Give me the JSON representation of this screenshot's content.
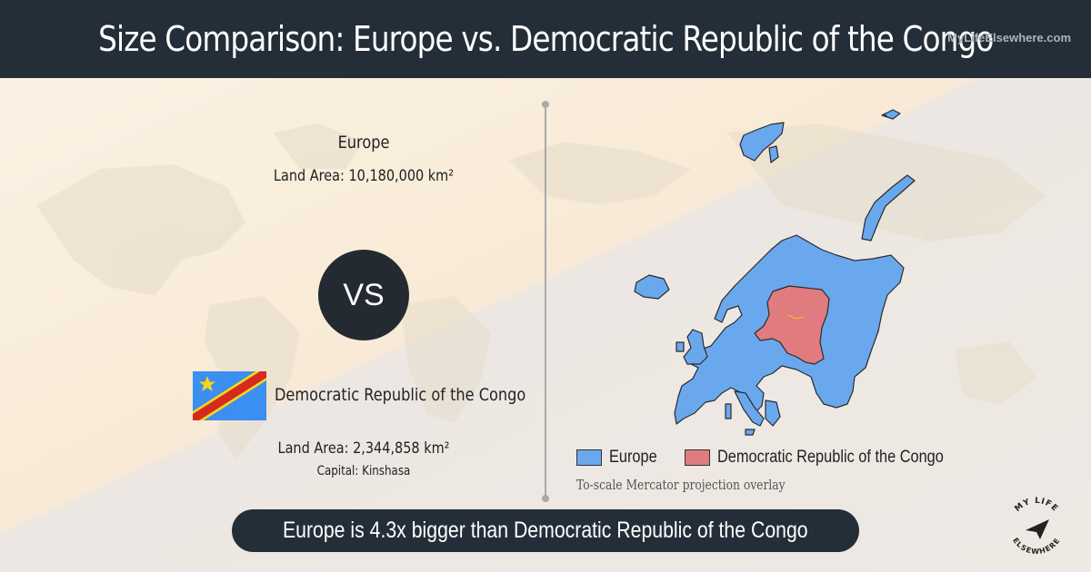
{
  "header": {
    "title": "Size Comparison: Europe vs. Democratic Republic of the Congo",
    "watermark": "MyLifeElsewhere.com"
  },
  "region": {
    "name": "Europe",
    "land_area": "Land Area: 10,180,000 km²"
  },
  "vs_label": "VS",
  "country": {
    "name": "Democratic Republic of the Congo",
    "land_area": "Land Area: 2,344,858 km²",
    "capital": "Capital: Kinshasa",
    "flag_colors": {
      "field": "#3a8ff0",
      "stripe": "#d52b1e",
      "stripe_border": "#f7d618",
      "star": "#f7d618"
    }
  },
  "map": {
    "legend": [
      {
        "label": "Europe",
        "color": "#6aa8ee"
      },
      {
        "label": "Democratic Republic of the Congo",
        "color": "#e07b80"
      }
    ],
    "caption": "To-scale Mercator projection overlay"
  },
  "footer": {
    "text": "Europe is 4.3x bigger than Democratic Republic of the Congo"
  },
  "logo": {
    "text_top": "MY LIFE",
    "text_bottom": "ELSEWHERE"
  },
  "colors": {
    "header_bg": "#242e38",
    "europe_fill": "#6aa8ee",
    "drc_fill": "#e07b80"
  }
}
